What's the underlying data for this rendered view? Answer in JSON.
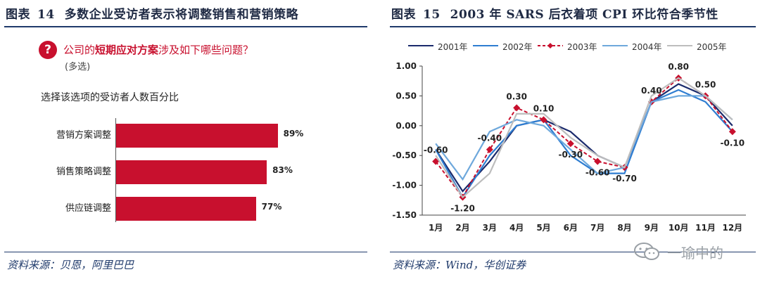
{
  "left": {
    "fig_title": {
      "label": "图表",
      "number": "14",
      "text": "多数企业受访者表示将调整销售和营销策略"
    },
    "question_icon": "question-icon",
    "question": {
      "prefix": "公司的",
      "highlight": "短期应对方案",
      "suffix": "涉及如下哪些问题？"
    },
    "note": "(多选)",
    "subtitle": "选择该选项的受访者人数百分比",
    "source": "资料来源：贝恩，阿里巴巴",
    "accent_color": "#c8102e",
    "chart_data": {
      "type": "bar",
      "orientation": "horizontal",
      "categories": [
        "营销方案调整",
        "销售策略调整",
        "供应链调整"
      ],
      "values": [
        89,
        83,
        77
      ],
      "value_labels": [
        "89%",
        "83%",
        "77%"
      ],
      "xlim": [
        0,
        100
      ]
    }
  },
  "right": {
    "fig_title": {
      "label": "图表",
      "number": "15",
      "text": "2003 年 SARS 后衣着项 CPI 环比符合季节性"
    },
    "source": "资料来源：Wind，华创证券",
    "chart_data": {
      "type": "line",
      "categories": [
        "1月",
        "2月",
        "3月",
        "4月",
        "5月",
        "6月",
        "7月",
        "8月",
        "9月",
        "10月",
        "11月",
        "12月"
      ],
      "ylim": [
        -1.5,
        1.0
      ],
      "yticks": [
        "1.00",
        "0.50",
        "0.00",
        "-0.50",
        "-1.00",
        "-1.50"
      ],
      "ytick_values": [
        1.0,
        0.5,
        0.0,
        -0.5,
        -1.0,
        -1.5
      ],
      "grid": false,
      "legend": "top",
      "series": [
        {
          "name": "2001年",
          "color": "#1a2a6c",
          "dash": "solid",
          "marker": "none",
          "values": [
            -0.4,
            -1.1,
            -0.6,
            0.0,
            0.1,
            -0.1,
            -0.5,
            -0.7,
            0.4,
            0.7,
            0.5,
            0.0
          ]
        },
        {
          "name": "2002年",
          "color": "#2e7dd1",
          "dash": "solid",
          "marker": "none",
          "values": [
            -0.4,
            -1.2,
            -0.5,
            0.0,
            0.1,
            -0.5,
            -0.8,
            -0.8,
            0.4,
            0.6,
            0.4,
            -0.1
          ]
        },
        {
          "name": "2003年",
          "color": "#c8102e",
          "dash": "dashed",
          "marker": "diamond",
          "values": [
            -0.6,
            -1.2,
            -0.4,
            0.3,
            0.1,
            -0.3,
            -0.6,
            -0.7,
            0.4,
            0.8,
            0.5,
            -0.1
          ]
        },
        {
          "name": "2004年",
          "color": "#6ea8dc",
          "dash": "solid",
          "marker": "none",
          "values": [
            -0.3,
            -0.9,
            -0.1,
            0.1,
            0.0,
            -0.4,
            -0.8,
            -0.7,
            0.4,
            0.5,
            0.5,
            0.1
          ]
        },
        {
          "name": "2005年",
          "color": "#bdbdbd",
          "dash": "solid",
          "marker": "none",
          "values": [
            -0.5,
            -1.2,
            -0.8,
            0.2,
            0.2,
            -0.2,
            -0.5,
            -0.7,
            0.5,
            0.8,
            0.5,
            0.1
          ]
        }
      ],
      "data_labels": [
        {
          "index": 0,
          "text": "-0.60"
        },
        {
          "index": 1,
          "text": "-1.20"
        },
        {
          "index": 2,
          "text": "-0.40"
        },
        {
          "index": 3,
          "text": "0.30"
        },
        {
          "index": 4,
          "text": "0.10"
        },
        {
          "index": 5,
          "text": "-0.30"
        },
        {
          "index": 6,
          "text": "-0.60"
        },
        {
          "index": 7,
          "text": "-0.70"
        },
        {
          "index": 8,
          "text": "0.40"
        },
        {
          "index": 9,
          "text": "0.80"
        },
        {
          "index": 10,
          "text": "0.50"
        },
        {
          "index": 11,
          "text": "-0.10"
        }
      ]
    }
  },
  "watermark": {
    "icon": "wechat-icon",
    "text": "一瑜中的"
  }
}
